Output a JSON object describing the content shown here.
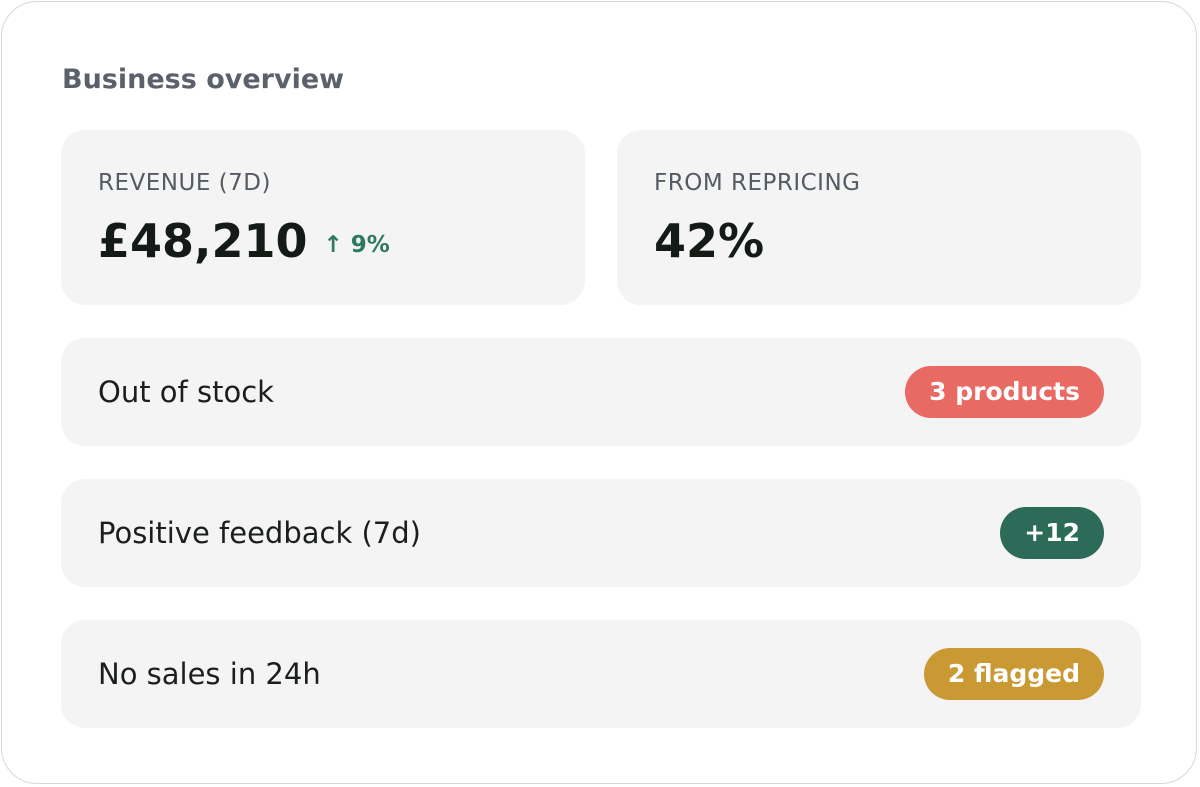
{
  "header": {
    "title": "Business overview"
  },
  "metrics": [
    {
      "label": "REVENUE (7D)",
      "value": "£48,210",
      "delta": "↑ 9%"
    },
    {
      "label": "FROM REPRICING",
      "value": "42%"
    }
  ],
  "rows": [
    {
      "label": "Out of stock",
      "badge": "3 products",
      "color": "#e86a62"
    },
    {
      "label": "Positive feedback (7d)",
      "badge": "+12",
      "color": "#2b6b58"
    },
    {
      "label": "No sales in 24h",
      "badge": "2 flagged",
      "color": "#c99a33"
    }
  ]
}
